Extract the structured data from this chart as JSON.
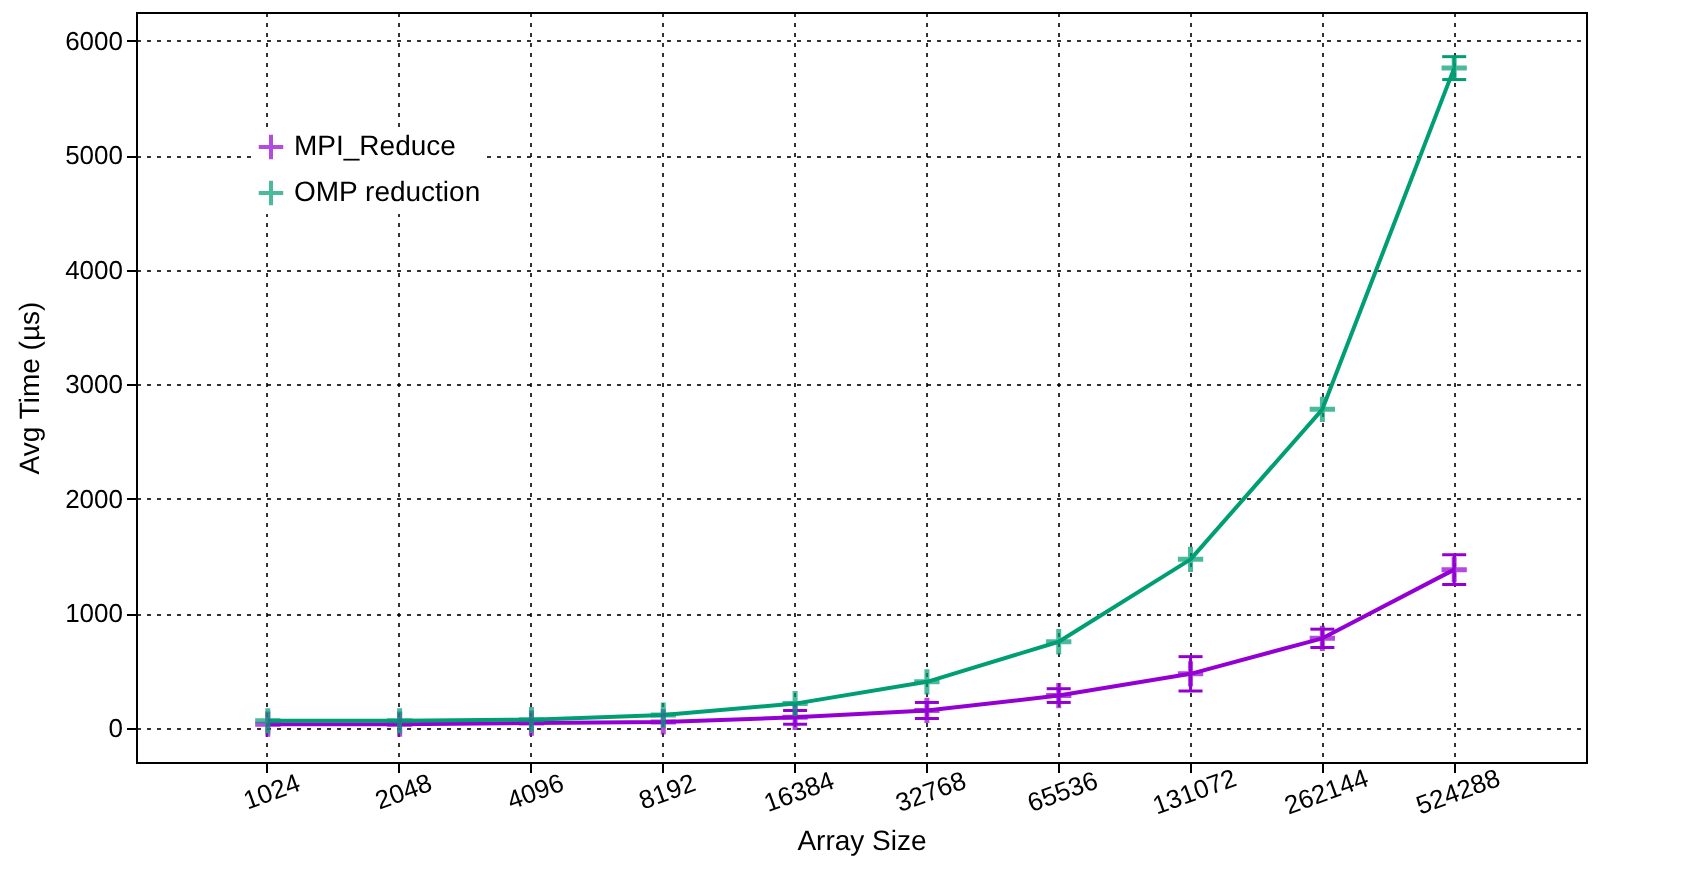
{
  "chart_data": {
    "type": "line",
    "xlabel": "Array Size",
    "ylabel": "Avg Time (µs)",
    "categories": [
      "1024",
      "2048",
      "4096",
      "8192",
      "16384",
      "32768",
      "65536",
      "131072",
      "262144",
      "524288"
    ],
    "series": [
      {
        "name": "MPI_Reduce",
        "color": "#9400d3",
        "marker": "cross",
        "values": [
          30,
          30,
          40,
          50,
          90,
          150,
          280,
          470,
          780,
          1380
        ],
        "errors": [
          null,
          null,
          null,
          null,
          60,
          70,
          60,
          150,
          80,
          130
        ]
      },
      {
        "name": "OMP reduction",
        "color": "#009e73",
        "marker": "cross",
        "values": [
          60,
          60,
          70,
          110,
          210,
          400,
          750,
          1470,
          2780,
          5760
        ],
        "errors": [
          null,
          null,
          null,
          null,
          null,
          null,
          null,
          null,
          null,
          100
        ]
      }
    ],
    "ylim": [
      -300,
      6250
    ],
    "yticks": [
      0,
      1000,
      2000,
      3000,
      4000,
      5000,
      6000
    ],
    "grid": true,
    "legend": "top left"
  }
}
